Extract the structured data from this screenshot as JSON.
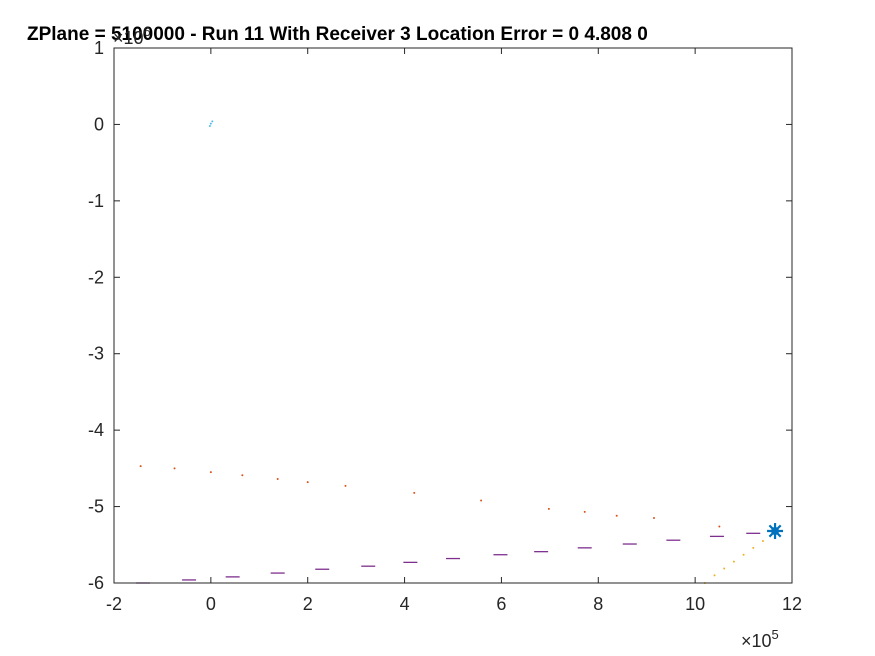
{
  "chart_data": {
    "type": "scatter",
    "title": "ZPlane = 5100000 - Run 11 With Receiver 3 Location Error = 0        4.808            0",
    "xlabel": "",
    "ylabel": "",
    "xlim": [
      -2,
      12
    ],
    "ylim": [
      -6,
      1
    ],
    "x_exponent_label": "×10",
    "x_exponent_power": "5",
    "y_exponent_label": "×10",
    "y_exponent_power": "6",
    "x_ticks": [
      "-2",
      "0",
      "2",
      "4",
      "6",
      "8",
      "10",
      "12"
    ],
    "y_ticks": [
      "1",
      "0",
      "-1",
      "-2",
      "-3",
      "-4",
      "-5",
      "-6"
    ],
    "grid": false,
    "series": [
      {
        "color": "#7e2f8e",
        "marker": "dash",
        "x": [
          -1.4,
          -0.45,
          0.45,
          1.38,
          2.3,
          3.25,
          4.12,
          5.0,
          5.98,
          6.82,
          7.72,
          8.65,
          9.55,
          10.45,
          11.2
        ],
        "y": [
          -6.0,
          -5.96,
          -5.92,
          -5.87,
          -5.82,
          -5.78,
          -5.73,
          -5.68,
          -5.63,
          -5.59,
          -5.54,
          -5.49,
          -5.44,
          -5.39,
          -5.35
        ]
      },
      {
        "color": "#d95319",
        "marker": "dot",
        "x": [
          -1.45,
          -0.75,
          0.0,
          0.65,
          1.38,
          2.0,
          2.78,
          4.2,
          5.58,
          6.98,
          7.72,
          8.38,
          9.15,
          10.5
        ],
        "y": [
          -4.47,
          -4.5,
          -4.55,
          -4.59,
          -4.64,
          -4.68,
          -4.73,
          -4.82,
          -4.92,
          -5.03,
          -5.07,
          -5.12,
          -5.15,
          -5.26
        ]
      },
      {
        "color": "#edb120",
        "marker": "dot",
        "x": [
          10.2,
          10.4,
          10.6,
          10.8,
          11.0,
          11.2,
          11.4,
          11.6
        ],
        "y": [
          -6.0,
          -5.9,
          -5.81,
          -5.72,
          -5.63,
          -5.54,
          -5.45,
          -5.35
        ]
      },
      {
        "color": "#4dbeee",
        "marker": "dot",
        "x": [
          -0.02,
          0.0,
          0.03
        ],
        "y": [
          -0.02,
          0.01,
          0.04
        ]
      },
      {
        "color": "#0072bd",
        "marker": "star",
        "x": [
          11.65
        ],
        "y": [
          -5.32
        ]
      }
    ]
  }
}
